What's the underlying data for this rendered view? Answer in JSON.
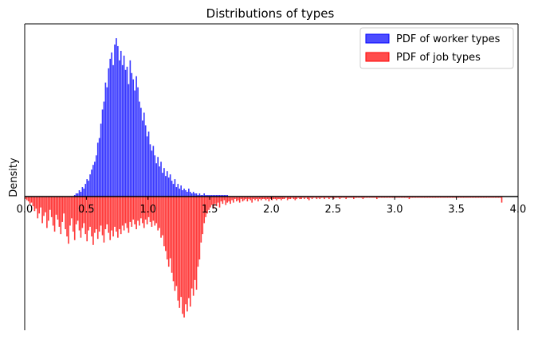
{
  "chart_data": {
    "type": "bar",
    "title": "Distributions of types",
    "xlabel": "",
    "ylabel": "Density",
    "xlim": [
      0.0,
      4.0
    ],
    "xticks": [
      "0.0",
      "0.5",
      "1.0",
      "1.5",
      "2.0",
      "2.5",
      "3.0",
      "3.5",
      "4.0"
    ],
    "grid": false,
    "legend_position": "top-right",
    "legend": [
      {
        "label": "PDF of worker types",
        "color": "#0000ff"
      },
      {
        "label": "PDF of job types",
        "color": "#ff0000"
      }
    ],
    "y_direction": "worker types plotted upward, job types mirrored downward",
    "series": [
      {
        "name": "PDF of worker types",
        "color": "#0000ff",
        "bin_width": 0.0125,
        "x_start": 0.4,
        "values": [
          0.01,
          0.02,
          0.02,
          0.04,
          0.03,
          0.06,
          0.05,
          0.08,
          0.11,
          0.1,
          0.14,
          0.17,
          0.2,
          0.22,
          0.26,
          0.34,
          0.37,
          0.46,
          0.55,
          0.6,
          0.72,
          0.69,
          0.81,
          0.87,
          0.91,
          0.83,
          0.96,
          1.0,
          0.95,
          0.86,
          0.92,
          0.83,
          0.89,
          0.8,
          0.82,
          0.71,
          0.86,
          0.78,
          0.74,
          0.67,
          0.76,
          0.69,
          0.6,
          0.56,
          0.48,
          0.53,
          0.45,
          0.38,
          0.41,
          0.33,
          0.29,
          0.32,
          0.26,
          0.21,
          0.25,
          0.19,
          0.22,
          0.15,
          0.18,
          0.13,
          0.16,
          0.12,
          0.14,
          0.1,
          0.08,
          0.11,
          0.06,
          0.08,
          0.05,
          0.07,
          0.04,
          0.05,
          0.04,
          0.03,
          0.05,
          0.03,
          0.02,
          0.03,
          0.02,
          0.02,
          0.01,
          0.02,
          0.01,
          0.01,
          0.02,
          0.01,
          0.01,
          0.01,
          0.01,
          0.01,
          0.01,
          0.01,
          0.01,
          0.01,
          0.01,
          0.01,
          0.01,
          0.01,
          0.01,
          0.01
        ]
      },
      {
        "name": "PDF of job types",
        "color": "#ff0000",
        "bin_width": 0.0125,
        "x_start": 0.0,
        "values": [
          0.02,
          0.03,
          0.04,
          0.06,
          0.05,
          0.08,
          0.12,
          0.1,
          0.18,
          0.14,
          0.09,
          0.22,
          0.16,
          0.13,
          0.26,
          0.2,
          0.11,
          0.17,
          0.24,
          0.29,
          0.15,
          0.19,
          0.25,
          0.31,
          0.21,
          0.14,
          0.27,
          0.33,
          0.39,
          0.24,
          0.18,
          0.29,
          0.36,
          0.23,
          0.2,
          0.28,
          0.34,
          0.26,
          0.22,
          0.31,
          0.37,
          0.28,
          0.25,
          0.33,
          0.4,
          0.3,
          0.27,
          0.35,
          0.29,
          0.24,
          0.32,
          0.38,
          0.27,
          0.23,
          0.3,
          0.36,
          0.28,
          0.33,
          0.25,
          0.29,
          0.34,
          0.27,
          0.31,
          0.24,
          0.28,
          0.22,
          0.26,
          0.3,
          0.21,
          0.25,
          0.19,
          0.23,
          0.27,
          0.2,
          0.24,
          0.18,
          0.22,
          0.26,
          0.19,
          0.23,
          0.17,
          0.21,
          0.25,
          0.2,
          0.24,
          0.22,
          0.28,
          0.26,
          0.34,
          0.32,
          0.41,
          0.45,
          0.52,
          0.58,
          0.51,
          0.63,
          0.7,
          0.78,
          0.74,
          0.86,
          0.92,
          0.83,
          0.97,
          1.0,
          0.89,
          0.95,
          0.84,
          0.91,
          0.76,
          0.82,
          0.69,
          0.77,
          0.58,
          0.52,
          0.38,
          0.31,
          0.22,
          0.17,
          0.14,
          0.11,
          0.09,
          0.07,
          0.1,
          0.06,
          0.08,
          0.05,
          0.09,
          0.04,
          0.06,
          0.03,
          0.07,
          0.05,
          0.04,
          0.06,
          0.03,
          0.05,
          0.02,
          0.04,
          0.03,
          0.05,
          0.02,
          0.04,
          0.03,
          0.02,
          0.04,
          0.02,
          0.03,
          0.05,
          0.02,
          0.03,
          0.02,
          0.04,
          0.02,
          0.03,
          0.02,
          0.02,
          0.03,
          0.02,
          0.04,
          0.02,
          0.03,
          0.02,
          0.02,
          0.03,
          0.02,
          0.02,
          0.03,
          0.02,
          0.02,
          0.01,
          0.03,
          0.02,
          0.02,
          0.01,
          0.02,
          0.03,
          0.02,
          0.01,
          0.02,
          0.02,
          0.01,
          0.02,
          0.01,
          0.02,
          0.03,
          0.01,
          0.02,
          0.01,
          0.01,
          0.02,
          0.01,
          0.02,
          0.01,
          0.01,
          0.02,
          0.01,
          0.01,
          0.02,
          0.01,
          0.01,
          0.02,
          0.01,
          0.01,
          0.01,
          0.02,
          0.01,
          0.01,
          0.01,
          0.02,
          0.01,
          0.01,
          0.01,
          0.01,
          0.02,
          0.01,
          0.01,
          0.01,
          0.01,
          0.01,
          0.02,
          0.01,
          0.01,
          0.01,
          0.01,
          0.01,
          0.01,
          0.01,
          0.01,
          0.02,
          0.01,
          0.01,
          0.01,
          0.01,
          0.01,
          0.01,
          0.01,
          0.01,
          0.01,
          0.01,
          0.01,
          0.01,
          0.01,
          0.01,
          0.01,
          0.01,
          0.01,
          0.01,
          0.01,
          0.01,
          0.02,
          0.01,
          0.01,
          0.01,
          0.01,
          0.01,
          0.01,
          0.01,
          0.01,
          0.01,
          0.01,
          0.01,
          0.01,
          0.01,
          0.01,
          0.01,
          0.01,
          0.01,
          0.01,
          0.01,
          0.01,
          0.01,
          0.01,
          0.01,
          0.01,
          0.01,
          0.01,
          0.01,
          0.01,
          0.01,
          0.01,
          0.01,
          0.01,
          0.01,
          0.01,
          0.01,
          0.01,
          0.01,
          0.01,
          0.01,
          0.01,
          0.01,
          0.01,
          0.01,
          0.01,
          0.01,
          0.01,
          0.01,
          0.01,
          0.01,
          0.01,
          0.01,
          0.01,
          0.01,
          0.01,
          0.01,
          0.01,
          0.01,
          0.01,
          0.01,
          0.05
        ]
      }
    ]
  }
}
